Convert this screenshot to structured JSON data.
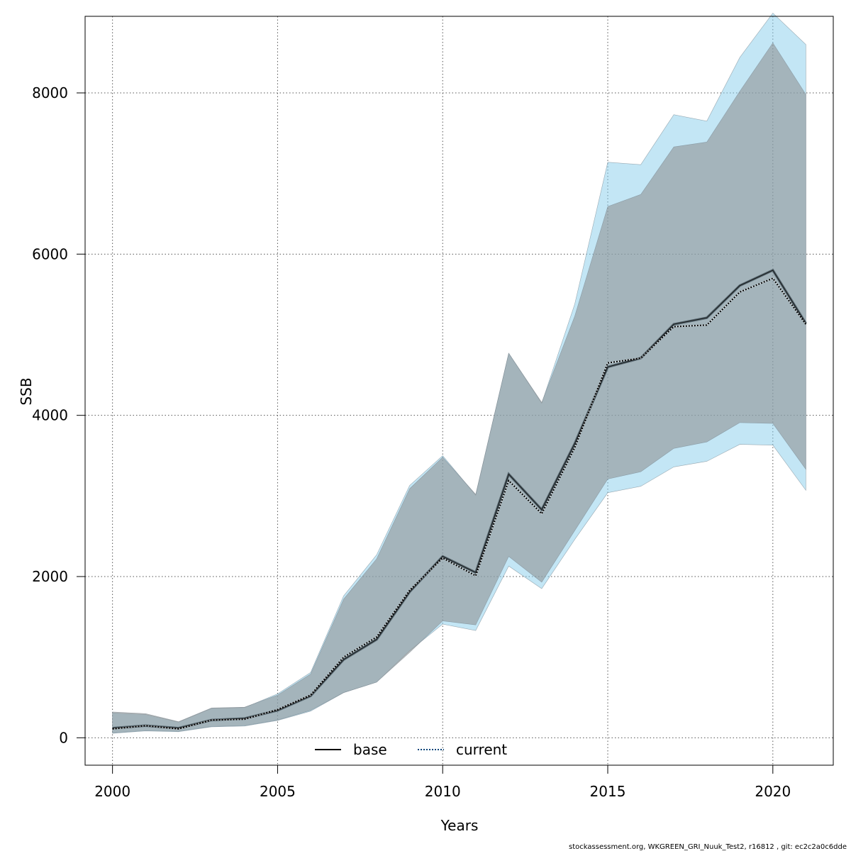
{
  "chart_data": {
    "type": "line",
    "xlabel": "Years",
    "ylabel": "SSB",
    "xlim": [
      1999.17,
      2021.83
    ],
    "ylim": [
      -340,
      8950
    ],
    "x_ticks": [
      2000,
      2005,
      2010,
      2015,
      2020
    ],
    "y_ticks": [
      0,
      2000,
      4000,
      6000,
      8000
    ],
    "grid": true,
    "legend": {
      "position": "bottom-center",
      "entries": [
        "base",
        "current"
      ]
    },
    "x": [
      2000,
      2001,
      2002,
      2003,
      2004,
      2005,
      2006,
      2007,
      2008,
      2009,
      2010,
      2011,
      2012,
      2013,
      2014,
      2015,
      2016,
      2017,
      2018,
      2019,
      2020,
      2021
    ],
    "series": [
      {
        "name": "base",
        "style": "solid",
        "color": "#000000",
        "band_color": "#8a8a8a",
        "values": [
          120,
          150,
          120,
          220,
          240,
          340,
          520,
          970,
          1220,
          1810,
          2250,
          2050,
          3270,
          2830,
          3650,
          4600,
          4710,
          5130,
          5210,
          5610,
          5800,
          5140
        ],
        "lower": [
          60,
          90,
          80,
          140,
          150,
          220,
          340,
          560,
          690,
          1060,
          1450,
          1400,
          2250,
          1930,
          2570,
          3210,
          3300,
          3590,
          3670,
          3910,
          3900,
          3330
        ],
        "upper": [
          320,
          300,
          200,
          370,
          380,
          530,
          790,
          1720,
          2220,
          3090,
          3480,
          3020,
          4770,
          4160,
          5230,
          6590,
          6740,
          7330,
          7390,
          8020,
          8620,
          7980
        ]
      },
      {
        "name": "current",
        "style": "dotted",
        "color": "#00447a",
        "band_color": "#87ceeb",
        "values": [
          110,
          150,
          110,
          220,
          230,
          350,
          530,
          1000,
          1250,
          1830,
          2230,
          2010,
          3190,
          2780,
          3600,
          4650,
          4710,
          5100,
          5120,
          5530,
          5700,
          5130
        ],
        "lower": [
          55,
          85,
          75,
          135,
          145,
          215,
          330,
          560,
          690,
          1080,
          1410,
          1330,
          2130,
          1850,
          2460,
          3040,
          3120,
          3360,
          3430,
          3640,
          3630,
          3070
        ],
        "upper": [
          310,
          290,
          195,
          365,
          375,
          545,
          810,
          1760,
          2270,
          3130,
          3500,
          3010,
          4770,
          4150,
          5380,
          7140,
          7110,
          7730,
          7650,
          8440,
          8990,
          8600
        ]
      }
    ],
    "footnote": "stockassessment.org, WKGREEN_GRI_Nuuk_Test2, r16812 , git: ec2c2a0c6dde"
  }
}
